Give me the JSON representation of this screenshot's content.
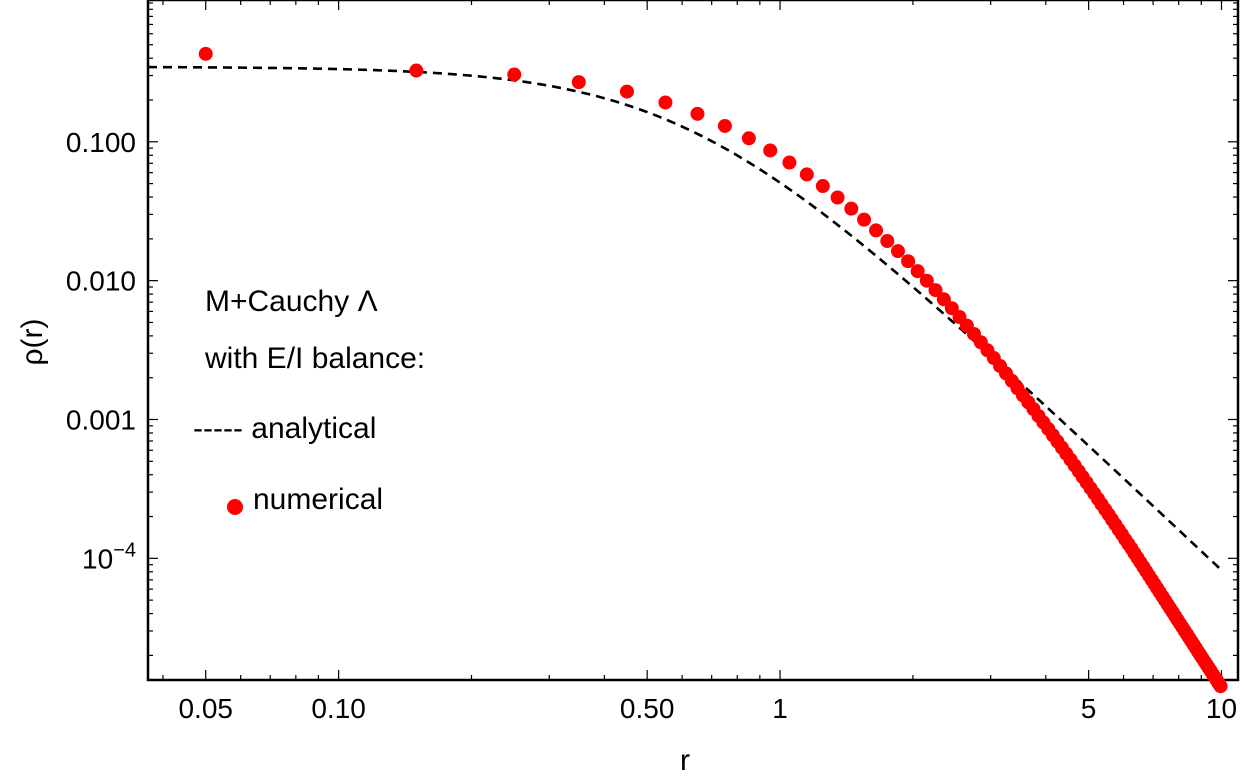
{
  "chart_data": {
    "type": "scatter",
    "x_scale": "log",
    "y_scale": "log",
    "xlabel": "r",
    "ylabel": "ρ(r)",
    "xlim": [
      0.037,
      10.9
    ],
    "ylim": [
      1.33e-05,
      1.05
    ],
    "x_ticks": [
      {
        "value": 0.05,
        "label": "0.05"
      },
      {
        "value": 0.1,
        "label": "0.10"
      },
      {
        "value": 0.5,
        "label": "0.50"
      },
      {
        "value": 1,
        "label": "1"
      },
      {
        "value": 5,
        "label": "5"
      },
      {
        "value": 10,
        "label": "10"
      }
    ],
    "y_ticks": [
      {
        "value": 0.1,
        "label": "0.100"
      },
      {
        "value": 0.01,
        "label": "0.010"
      },
      {
        "value": 0.001,
        "label": "0.001"
      },
      {
        "value": 0.0001,
        "base": "10",
        "exponent": "−4"
      }
    ],
    "legend": {
      "title_line1": "M+Cauchy Λ",
      "title_line2": "with E/I balance:",
      "analytical_label": "----- analytical",
      "numerical_label": "numerical"
    },
    "series": [
      {
        "kind": "line",
        "style": "dashed",
        "color": "#000000",
        "function": "cauchy_density"
      },
      {
        "kind": "points",
        "color": "#ff0000",
        "x": [
          0.05,
          0.15,
          0.25,
          0.35,
          0.45,
          0.55,
          0.65,
          0.75,
          0.85,
          0.95,
          1.05,
          1.15,
          1.25,
          1.35,
          1.45,
          1.55,
          1.65,
          1.75,
          1.85,
          1.95,
          2.05,
          2.15,
          2.25,
          2.35,
          2.45,
          2.55,
          2.65,
          2.75,
          2.85,
          2.95,
          3.05,
          3.15,
          3.25,
          3.35,
          3.45,
          3.55,
          3.65,
          3.75,
          3.85,
          3.95,
          4.05,
          4.15,
          4.25,
          4.35,
          4.45,
          4.55,
          4.65,
          4.75,
          4.85,
          4.95,
          5.05,
          5.15,
          5.25,
          5.35,
          5.45,
          5.55,
          5.65,
          5.75,
          5.85,
          5.95,
          6.05,
          6.15,
          6.25,
          6.35,
          6.45,
          6.55,
          6.65,
          6.75,
          6.85,
          6.95,
          7.05,
          7.15,
          7.25,
          7.35,
          7.45,
          7.55,
          7.65,
          7.75,
          7.85,
          7.95,
          8.05,
          8.15,
          8.25,
          8.35,
          8.45,
          8.55,
          8.65,
          8.75,
          8.85,
          8.95,
          9.05,
          9.15,
          9.25,
          9.35,
          9.45,
          9.55,
          9.65,
          9.75,
          9.85,
          9.95
        ],
        "y": [
          0.43,
          0.326,
          0.305,
          0.269,
          0.23,
          0.192,
          0.159,
          0.13,
          0.106,
          0.0866,
          0.0709,
          0.0582,
          0.048,
          0.0397,
          0.033,
          0.0275,
          0.023,
          0.0193,
          0.0163,
          0.0138,
          0.0117,
          0.00999,
          0.00855,
          0.00734,
          0.00633,
          0.00547,
          0.00474,
          0.00413,
          0.0036,
          0.00315,
          0.00277,
          0.00243,
          0.00215,
          0.0019,
          0.00168,
          0.00149,
          0.00133,
          0.00119,
          0.00106,
          0.000953,
          0.000856,
          0.00077,
          0.000694,
          0.000627,
          0.000567,
          0.000514,
          0.000466,
          0.000424,
          0.000385,
          0.000351,
          0.00032,
          0.000293,
          0.000268,
          0.000245,
          0.000225,
          0.000207,
          0.00019,
          0.000175,
          0.000161,
          0.000149,
          0.000137,
          0.000127,
          0.000118,
          0.000109,
          0.000101,
          9.37e-05,
          8.7e-05,
          8.08e-05,
          7.52e-05,
          7.01e-05,
          6.53e-05,
          6.09e-05,
          5.69e-05,
          5.32e-05,
          4.98e-05,
          4.66e-05,
          4.37e-05,
          4.1e-05,
          3.85e-05,
          3.61e-05,
          3.4e-05,
          3.2e-05,
          3.01e-05,
          2.84e-05,
          2.68e-05,
          2.53e-05,
          2.39e-05,
          2.26e-05,
          2.13e-05,
          2.02e-05,
          1.91e-05,
          1.81e-05,
          1.72e-05,
          1.63e-05,
          1.55e-05,
          1.47e-05,
          1.4e-05,
          1.33e-05,
          1.26e-05,
          1.2e-05
        ]
      }
    ]
  }
}
